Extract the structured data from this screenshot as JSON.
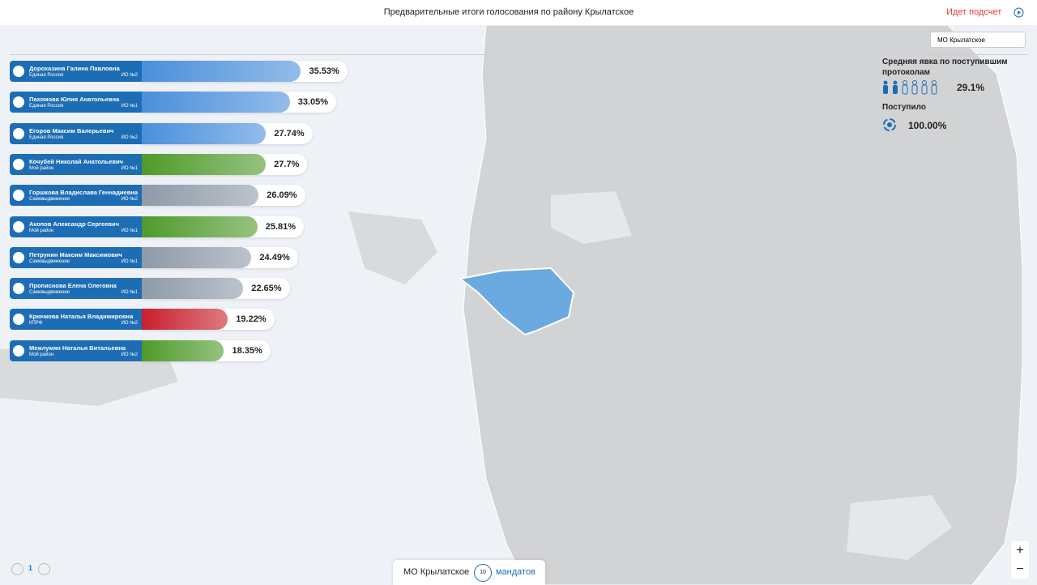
{
  "header": {
    "title": "Предварительные итоги голосования по району Крылатское",
    "status": "Идет подсчет"
  },
  "district_select": "МО Крылатское",
  "turnout": {
    "label": "Средняя явка по поступившим протоколам",
    "value": "29.1%"
  },
  "received": {
    "label": "Поступило",
    "value": "100.00%"
  },
  "candidates": [
    {
      "name": "Дорохазина Галина Павловна",
      "party": "Единая Россия",
      "district": "ИО №2",
      "value": 35.53,
      "value_label": "35.53%",
      "color": "#4a8fdc"
    },
    {
      "name": "Пахомова Юлия Анатольевна",
      "party": "Единая Россия",
      "district": "ИО №1",
      "value": 33.05,
      "value_label": "33.05%",
      "color": "#4a8fdc"
    },
    {
      "name": "Егоров Максим Валерьевич",
      "party": "Единая Россия",
      "district": "ИО №2",
      "value": 27.74,
      "value_label": "27.74%",
      "color": "#4a8fdc"
    },
    {
      "name": "Кочубей Николай Анатольевич",
      "party": "Мой район",
      "district": "ИО №1",
      "value": 27.7,
      "value_label": "27.7%",
      "color": "#4f9a2a"
    },
    {
      "name": "Горшкова Владислава Геннадиевна",
      "party": "Самовыдвижение",
      "district": "ИО №2",
      "value": 26.09,
      "value_label": "26.09%",
      "color": "#8e9aa8"
    },
    {
      "name": "Акопов Александр Сергеевич",
      "party": "Мой район",
      "district": "ИО №1",
      "value": 25.81,
      "value_label": "25.81%",
      "color": "#4f9a2a"
    },
    {
      "name": "Петрунин Максим Максимович",
      "party": "Самовыдвижение",
      "district": "ИО №1",
      "value": 24.49,
      "value_label": "24.49%",
      "color": "#8e9aa8"
    },
    {
      "name": "Прописнова Елена Олеговна",
      "party": "Самовыдвижение",
      "district": "ИО №1",
      "value": 22.65,
      "value_label": "22.65%",
      "color": "#8e9aa8"
    },
    {
      "name": "Крючкова Наталья Владимировна",
      "party": "КПРФ",
      "district": "ИО №2",
      "value": 19.22,
      "value_label": "19.22%",
      "color": "#c8202c"
    },
    {
      "name": "Межлумян Наталья Витальевна",
      "party": "Мой район",
      "district": "ИО №2",
      "value": 18.35,
      "value_label": "18.35%",
      "color": "#4f9a2a"
    }
  ],
  "footer": {
    "district": "МО Крылатское",
    "mandates": "10",
    "mandates_label": "мандатов",
    "page": "1"
  },
  "zoom": {
    "in": "+",
    "out": "−"
  }
}
